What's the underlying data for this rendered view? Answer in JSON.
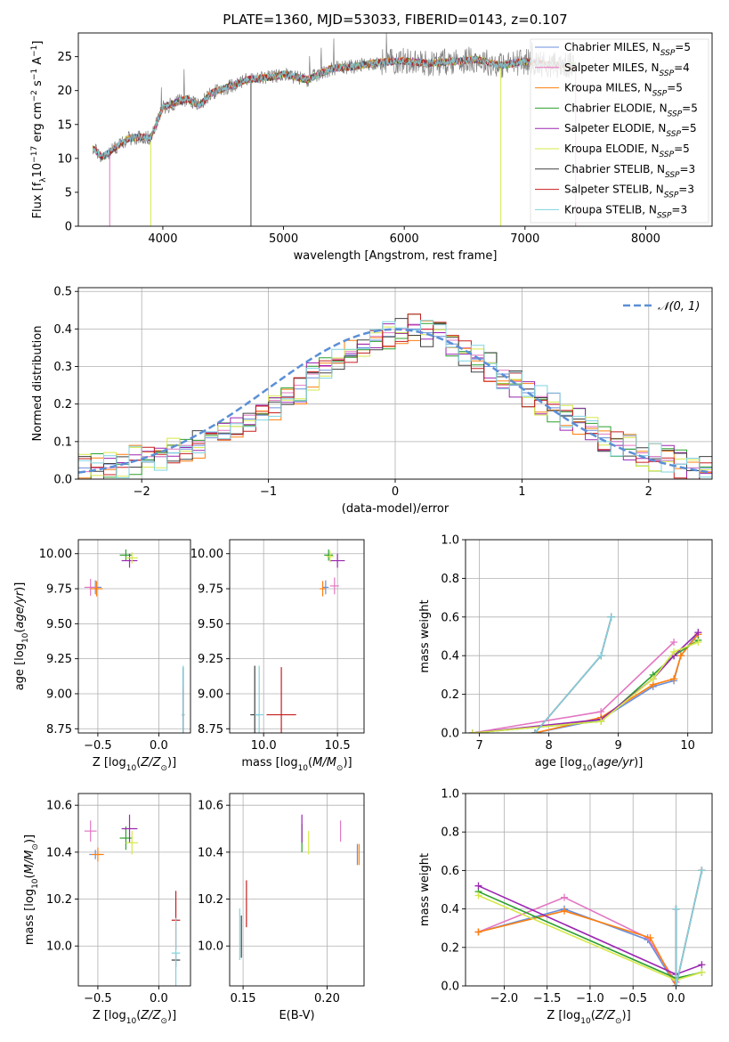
{
  "colors": {
    "Chabrier MILES": "#6a8fdc",
    "Salpeter MILES": "#e377c2",
    "Kroupa MILES": "#ff7f0e",
    "Chabrier ELODIE": "#2ca02c",
    "Salpeter ELODIE": "#9b27b0",
    "Kroupa ELODIE": "#d6e84a",
    "Chabrier STELIB": "#404040",
    "Salpeter STELIB": "#c81e1e",
    "Kroupa STELIB": "#7fd3e0",
    "normal": "#5b8fd6"
  },
  "chart_data": [
    {
      "type": "line",
      "title": "PLATE=1360, MJD=53033, FIBERID=0143, z=0.107",
      "xlabel": "wavelength [Angstrom, rest frame]",
      "ylabel": "Flux [f_λ 10^-17 erg cm^-2 s^-1 A^-1]",
      "xlim": [
        3300,
        8550
      ],
      "ylim": [
        0,
        28.5
      ],
      "xticks": [
        4000,
        5000,
        6000,
        7000,
        8000
      ],
      "yticks": [
        0,
        5,
        10,
        15,
        20,
        25
      ],
      "grid": false,
      "legend": "right",
      "data_series": {
        "name": "",
        "color": "#7f7f7f"
      },
      "series": [
        {
          "name": "Chabrier MILES, N_SSP=5",
          "color_key": "Chabrier MILES"
        },
        {
          "name": "Salpeter MILES, N_SSP=4",
          "color_key": "Salpeter MILES"
        },
        {
          "name": "Kroupa MILES, N_SSP=5",
          "color_key": "Kroupa MILES"
        },
        {
          "name": "Chabrier ELODIE, N_SSP=5",
          "color_key": "Chabrier ELODIE"
        },
        {
          "name": "Salpeter ELODIE, N_SSP=5",
          "color_key": "Salpeter ELODIE"
        },
        {
          "name": "Kroupa ELODIE, N_SSP=5",
          "color_key": "Kroupa ELODIE"
        },
        {
          "name": "Chabrier STELIB, N_SSP=3",
          "color_key": "Chabrier STELIB"
        },
        {
          "name": "Salpeter STELIB, N_SSP=3",
          "color_key": "Salpeter STELIB"
        },
        {
          "name": "Kroupa STELIB, N_SSP=3",
          "color_key": "Kroupa STELIB"
        }
      ],
      "continuum": [
        [
          3420,
          11.5
        ],
        [
          3500,
          10.2
        ],
        [
          3600,
          11.5
        ],
        [
          3700,
          12.8
        ],
        [
          3800,
          13.2
        ],
        [
          3900,
          13.0
        ],
        [
          4000,
          17.5
        ],
        [
          4100,
          18.2
        ],
        [
          4200,
          18.8
        ],
        [
          4300,
          17.8
        ],
        [
          4400,
          19.6
        ],
        [
          4500,
          20.3
        ],
        [
          4700,
          21.6
        ],
        [
          4900,
          22.0
        ],
        [
          5000,
          22.4
        ],
        [
          5200,
          21.6
        ],
        [
          5400,
          23.3
        ],
        [
          5600,
          23.6
        ],
        [
          5800,
          24.2
        ],
        [
          6000,
          24.4
        ],
        [
          6200,
          24.0
        ],
        [
          6400,
          24.3
        ],
        [
          6600,
          24.6
        ],
        [
          6800,
          23.7
        ],
        [
          7000,
          24.3
        ],
        [
          7200,
          23.8
        ],
        [
          7420,
          23.6
        ]
      ],
      "annotations": {
        "dropouts": [
          [
            3560,
            "Salpeter MILES"
          ],
          [
            3900,
            "Kroupa ELODIE"
          ],
          [
            4730,
            "Chabrier STELIB"
          ],
          [
            6800,
            "Kroupa ELODIE"
          ],
          [
            7420,
            "Salpeter MILES"
          ]
        ]
      }
    },
    {
      "type": "histogram",
      "xlabel": "(data-model)/error",
      "ylabel": "Normed distribution",
      "xlim": [
        -2.5,
        2.5
      ],
      "ylim": [
        0,
        0.51
      ],
      "xticks": [
        -2,
        -1,
        0,
        1,
        2
      ],
      "yticks": [
        0.0,
        0.1,
        0.2,
        0.3,
        0.4,
        0.5
      ],
      "grid": true,
      "legend": "top-right",
      "legend_label": "𝒩(0, 1)",
      "bin_width": 0.1,
      "bin_range": [
        -2.5,
        2.5
      ],
      "series": [
        {
          "color_key": "Chabrier MILES",
          "values": [
            0.03,
            0.03,
            0.04,
            0.04,
            0.05,
            0.05,
            0.06,
            0.07,
            0.08,
            0.09,
            0.11,
            0.12,
            0.14,
            0.16,
            0.17,
            0.19,
            0.22,
            0.24,
            0.27,
            0.29,
            0.31,
            0.33,
            0.35,
            0.37,
            0.38,
            0.39,
            0.4,
            0.39,
            0.38,
            0.36,
            0.34,
            0.32,
            0.3,
            0.28,
            0.25,
            0.23,
            0.21,
            0.19,
            0.17,
            0.15,
            0.13,
            0.11,
            0.1,
            0.08,
            0.07,
            0.06,
            0.05,
            0.04,
            0.03,
            0.03
          ]
        },
        {
          "color_key": "Salpeter MILES",
          "values": [
            0.02,
            0.03,
            0.03,
            0.04,
            0.05,
            0.06,
            0.06,
            0.08,
            0.09,
            0.1,
            0.12,
            0.13,
            0.15,
            0.17,
            0.18,
            0.21,
            0.23,
            0.25,
            0.28,
            0.3,
            0.32,
            0.34,
            0.36,
            0.38,
            0.39,
            0.4,
            0.41,
            0.4,
            0.39,
            0.37,
            0.35,
            0.33,
            0.31,
            0.29,
            0.26,
            0.24,
            0.22,
            0.2,
            0.18,
            0.16,
            0.14,
            0.12,
            0.1,
            0.09,
            0.07,
            0.06,
            0.05,
            0.04,
            0.03,
            0.02
          ]
        }
      ],
      "normal_curve": {
        "mu": 0,
        "sigma": 1
      }
    },
    {
      "type": "scatter",
      "xlabel": "Z [log10(Z/Z_sun)]",
      "ylabel": "age  [log10(age/yr)]",
      "xlim": [
        -0.66,
        0.26
      ],
      "ylim": [
        8.72,
        10.1
      ],
      "xticks": [
        -0.5,
        0.0
      ],
      "yticks": [
        8.75,
        9.0,
        9.25,
        9.5,
        9.75,
        10.0
      ],
      "grid": true,
      "points": [
        {
          "c": "Chabrier MILES",
          "x": -0.52,
          "y": 9.76,
          "xe": 0.1,
          "ye": 0.1
        },
        {
          "c": "Salpeter MILES",
          "x": -0.56,
          "y": 9.76,
          "xe": 0.1,
          "ye": 0.12
        },
        {
          "c": "Kroupa MILES",
          "x": -0.51,
          "y": 9.75,
          "xe": 0.1,
          "ye": 0.11
        },
        {
          "c": "Chabrier ELODIE",
          "x": -0.27,
          "y": 9.99,
          "xe": 0.1,
          "ye": 0.08
        },
        {
          "c": "Salpeter ELODIE",
          "x": -0.24,
          "y": 9.95,
          "xe": 0.13,
          "ye": 0.1
        },
        {
          "c": "Kroupa ELODIE",
          "x": -0.22,
          "y": 9.97,
          "xe": 0.1,
          "ye": 0.08
        },
        {
          "c": "Chabrier STELIB",
          "x": 0.2,
          "y": 8.85,
          "xe": 0.02,
          "ye": 0.68
        },
        {
          "c": "Salpeter STELIB",
          "x": 0.2,
          "y": 8.85,
          "xe": 0.02,
          "ye": 0.4
        },
        {
          "c": "Kroupa STELIB",
          "x": 0.2,
          "y": 8.85,
          "xe": 0.02,
          "ye": 0.7
        }
      ]
    },
    {
      "type": "scatter",
      "xlabel": "mass [log10(M/M_sun)]",
      "ylabel": "",
      "xlim": [
        9.77,
        10.68
      ],
      "ylim": [
        8.72,
        10.1
      ],
      "xticks": [
        10.0,
        10.5
      ],
      "yticks": [
        8.75,
        9.0,
        9.25,
        9.5,
        9.75,
        10.0
      ],
      "grid": true,
      "points": [
        {
          "c": "Chabrier MILES",
          "x": 10.42,
          "y": 9.76,
          "xe": 0.04,
          "ye": 0.1
        },
        {
          "c": "Salpeter MILES",
          "x": 10.48,
          "y": 9.77,
          "xe": 0.06,
          "ye": 0.12
        },
        {
          "c": "Kroupa MILES",
          "x": 10.4,
          "y": 9.75,
          "xe": 0.04,
          "ye": 0.11
        },
        {
          "c": "Chabrier ELODIE",
          "x": 10.44,
          "y": 9.99,
          "xe": 0.06,
          "ye": 0.08
        },
        {
          "c": "Salpeter ELODIE",
          "x": 10.5,
          "y": 9.95,
          "xe": 0.1,
          "ye": 0.1
        },
        {
          "c": "Kroupa ELODIE",
          "x": 10.45,
          "y": 9.98,
          "xe": 0.05,
          "ye": 0.08
        },
        {
          "c": "Chabrier STELIB",
          "x": 9.94,
          "y": 8.85,
          "xe": 0.06,
          "ye": 0.7
        },
        {
          "c": "Salpeter STELIB",
          "x": 10.12,
          "y": 8.85,
          "xe": 0.2,
          "ye": 0.68
        },
        {
          "c": "Kroupa STELIB",
          "x": 9.97,
          "y": 8.85,
          "xe": 0.06,
          "ye": 0.7
        }
      ]
    },
    {
      "type": "line",
      "xlabel": "age  [log10(age/yr)]",
      "ylabel": "mass weight",
      "xlim": [
        6.8,
        10.35
      ],
      "ylim": [
        0,
        1.0
      ],
      "xticks": [
        7,
        8,
        9,
        10
      ],
      "yticks": [
        0.0,
        0.2,
        0.4,
        0.6,
        0.8,
        1.0
      ],
      "grid": true,
      "series": [
        {
          "c": "Chabrier MILES",
          "x": [
            7.8,
            8.75,
            9.5,
            9.8,
            9.9,
            10.15
          ],
          "y": [
            0.0,
            0.07,
            0.24,
            0.27,
            0.4,
            0.52
          ]
        },
        {
          "c": "Salpeter MILES",
          "x": [
            6.9,
            8.75,
            9.8
          ],
          "y": [
            0.0,
            0.11,
            0.47
          ]
        },
        {
          "c": "Kroupa MILES",
          "x": [
            7.8,
            8.75,
            9.5,
            9.8,
            9.9,
            10.15
          ],
          "y": [
            0.0,
            0.08,
            0.25,
            0.28,
            0.4,
            0.51
          ]
        },
        {
          "c": "Chabrier ELODIE",
          "x": [
            6.9,
            8.75,
            9.5,
            9.8,
            10.15
          ],
          "y": [
            0.0,
            0.06,
            0.3,
            0.4,
            0.48
          ]
        },
        {
          "c": "Salpeter ELODIE",
          "x": [
            6.9,
            8.75,
            9.5,
            9.8,
            10.15
          ],
          "y": [
            0.0,
            0.07,
            0.28,
            0.4,
            0.52
          ]
        },
        {
          "c": "Kroupa ELODIE",
          "x": [
            6.9,
            8.75,
            9.5,
            9.8,
            10.15
          ],
          "y": [
            0.0,
            0.06,
            0.28,
            0.42,
            0.47
          ]
        },
        {
          "c": "Chabrier STELIB",
          "x": [
            7.8,
            8.75,
            8.9
          ],
          "y": [
            0.0,
            0.4,
            0.6
          ]
        },
        {
          "c": "Salpeter STELIB",
          "x": [
            7.8,
            8.75,
            8.9
          ],
          "y": [
            0.0,
            0.4,
            0.6
          ]
        },
        {
          "c": "Kroupa STELIB",
          "x": [
            7.8,
            8.75,
            8.9
          ],
          "y": [
            0.0,
            0.4,
            0.6
          ]
        }
      ]
    },
    {
      "type": "scatter",
      "xlabel": "Z [log10(Z/Z_sun)]",
      "ylabel": "mass [log10(M/M_sun)]",
      "xlim": [
        -0.66,
        0.26
      ],
      "ylim": [
        9.83,
        10.65
      ],
      "xticks": [
        -0.5,
        0.0
      ],
      "yticks": [
        10.0,
        10.2,
        10.4,
        10.6
      ],
      "grid": true,
      "points": [
        {
          "c": "Chabrier MILES",
          "x": -0.52,
          "y": 10.39,
          "xe": 0.1,
          "ye": 0.04
        },
        {
          "c": "Salpeter MILES",
          "x": -0.56,
          "y": 10.49,
          "xe": 0.1,
          "ye": 0.09
        },
        {
          "c": "Kroupa MILES",
          "x": -0.5,
          "y": 10.39,
          "xe": 0.1,
          "ye": 0.06
        },
        {
          "c": "Chabrier ELODIE",
          "x": -0.27,
          "y": 10.46,
          "xe": 0.1,
          "ye": 0.1
        },
        {
          "c": "Salpeter ELODIE",
          "x": -0.24,
          "y": 10.5,
          "xe": 0.13,
          "ye": 0.12
        },
        {
          "c": "Kroupa ELODIE",
          "x": -0.22,
          "y": 10.44,
          "xe": 0.1,
          "ye": 0.1
        },
        {
          "c": "Chabrier STELIB",
          "x": 0.14,
          "y": 9.94,
          "xe": 0.07,
          "ye": 0.06
        },
        {
          "c": "Salpeter STELIB",
          "x": 0.14,
          "y": 10.11,
          "xe": 0.07,
          "ye": 0.25
        },
        {
          "c": "Kroupa STELIB",
          "x": 0.14,
          "y": 9.97,
          "xe": 0.07,
          "ye": 0.3
        }
      ]
    },
    {
      "type": "scatter",
      "xlabel": "E(B-V)",
      "ylabel": "",
      "xlim": [
        0.142,
        0.222
      ],
      "ylim": [
        9.83,
        10.65
      ],
      "xticks": [
        0.15,
        0.2
      ],
      "yticks": [
        10.0,
        10.2,
        10.4,
        10.6
      ],
      "grid": true,
      "points": [
        {
          "c": "Chabrier MILES",
          "x": 0.218,
          "y": 10.39,
          "xe": 0,
          "ye": 0.09
        },
        {
          "c": "Salpeter MILES",
          "x": 0.208,
          "y": 10.49,
          "xe": 0,
          "ye": 0.09
        },
        {
          "c": "Kroupa MILES",
          "x": 0.219,
          "y": 10.39,
          "xe": 0,
          "ye": 0.09
        },
        {
          "c": "Chabrier ELODIE",
          "x": 0.185,
          "y": 10.46,
          "xe": 0,
          "ye": 0.12
        },
        {
          "c": "Salpeter ELODIE",
          "x": 0.185,
          "y": 10.5,
          "xe": 0,
          "ye": 0.12
        },
        {
          "c": "Kroupa ELODIE",
          "x": 0.189,
          "y": 10.44,
          "xe": 0,
          "ye": 0.1
        },
        {
          "c": "Chabrier STELIB",
          "x": 0.149,
          "y": 10.04,
          "xe": 0,
          "ye": 0.18
        },
        {
          "c": "Salpeter STELIB",
          "x": 0.152,
          "y": 10.18,
          "xe": 0,
          "ye": 0.2
        },
        {
          "c": "Kroupa STELIB",
          "x": 0.148,
          "y": 10.05,
          "xe": 0,
          "ye": 0.22
        }
      ]
    },
    {
      "type": "line",
      "xlabel": "Z [log10(Z/Z_sun)]",
      "ylabel": "mass weight",
      "xlim": [
        -2.45,
        0.42
      ],
      "ylim": [
        0,
        1.0
      ],
      "xticks": [
        -2.0,
        -1.5,
        -1.0,
        -0.5,
        0.0
      ],
      "yticks": [
        0.0,
        0.2,
        0.4,
        0.6,
        0.8,
        1.0
      ],
      "grid": true,
      "series": [
        {
          "c": "Chabrier MILES",
          "x": [
            -2.3,
            -1.3,
            -0.33,
            0.0
          ],
          "y": [
            0.28,
            0.4,
            0.24,
            0.0
          ]
        },
        {
          "c": "Salpeter MILES",
          "x": [
            -2.3,
            -1.3,
            -0.33,
            0.0,
            0.0
          ],
          "y": [
            0.28,
            0.46,
            0.25,
            0.02,
            0.0
          ]
        },
        {
          "c": "Kroupa MILES",
          "x": [
            -2.3,
            -1.3,
            -0.3,
            0.0
          ],
          "y": [
            0.28,
            0.39,
            0.25,
            0.0
          ]
        },
        {
          "c": "Chabrier ELODIE",
          "x": [
            -2.3,
            0.0,
            0.3
          ],
          "y": [
            0.49,
            0.04,
            0.07
          ]
        },
        {
          "c": "Salpeter ELODIE",
          "x": [
            -2.3,
            0.0,
            0.3
          ],
          "y": [
            0.52,
            0.06,
            0.11
          ]
        },
        {
          "c": "Kroupa ELODIE",
          "x": [
            -2.3,
            0.0,
            0.3
          ],
          "y": [
            0.47,
            0.03,
            0.07
          ]
        },
        {
          "c": "Chabrier STELIB",
          "x": [
            0.0,
            0.0,
            0.3
          ],
          "y": [
            0.4,
            0.0,
            0.6
          ]
        },
        {
          "c": "Salpeter STELIB",
          "x": [
            0.0,
            0.0,
            0.3
          ],
          "y": [
            0.4,
            0.0,
            0.6
          ]
        },
        {
          "c": "Kroupa STELIB",
          "x": [
            0.0,
            0.0,
            0.3
          ],
          "y": [
            0.4,
            0.0,
            0.6
          ]
        }
      ]
    }
  ]
}
